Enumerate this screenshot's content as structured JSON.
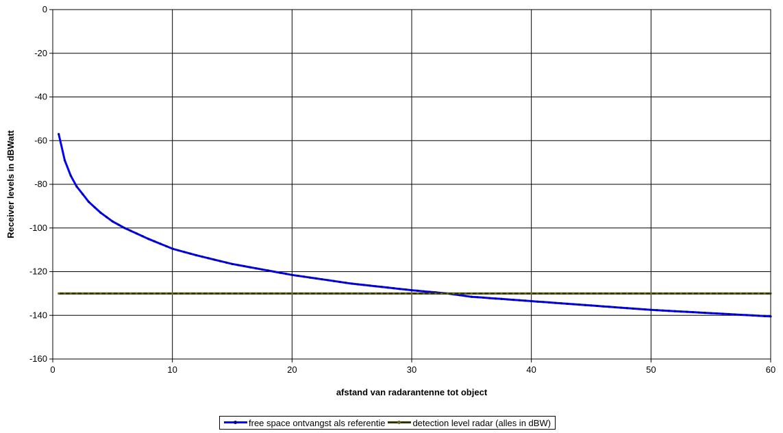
{
  "chart_data": {
    "type": "line",
    "title": "",
    "xlabel": "afstand van radarantenne tot object",
    "ylabel": "Receiver levels in dBWatt",
    "xlim": [
      0,
      60
    ],
    "ylim": [
      -160,
      0
    ],
    "xticks": [
      0,
      10,
      20,
      30,
      40,
      50,
      60
    ],
    "yticks": [
      0,
      -20,
      -40,
      -60,
      -80,
      -100,
      -120,
      -140,
      -160
    ],
    "grid": true,
    "legend_position": "bottom",
    "series": [
      {
        "name": "free space ontvangst als referentie",
        "color": "#0000ff",
        "marker_color": "#000080",
        "x": [
          0.5,
          1,
          1.5,
          2,
          3,
          4,
          5,
          6,
          8,
          10,
          12,
          15,
          18,
          20,
          25,
          30,
          33,
          35,
          40,
          45,
          50,
          55,
          60
        ],
        "y": [
          -57,
          -69,
          -76,
          -81,
          -88,
          -93,
          -97,
          -100,
          -105,
          -109.5,
          -112.5,
          -116.5,
          -119.5,
          -121.5,
          -125.5,
          -128.5,
          -130,
          -131.5,
          -133.5,
          -135.5,
          -137.5,
          -139,
          -140.5
        ]
      },
      {
        "name": "detection level radar (alles in dBW)",
        "color": "#333300",
        "marker_color": "#66662a",
        "x": [
          0.5,
          60
        ],
        "y": [
          -130,
          -130
        ]
      }
    ]
  }
}
